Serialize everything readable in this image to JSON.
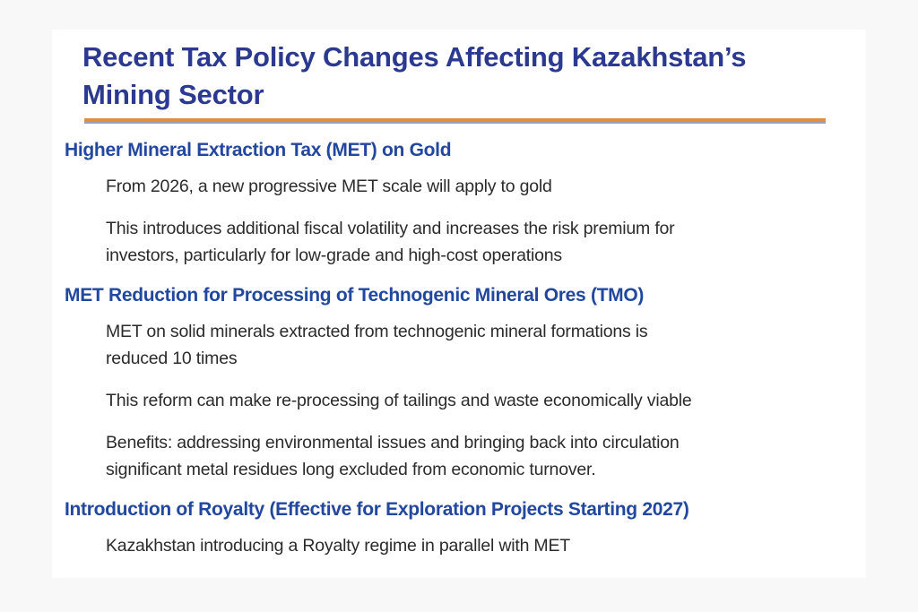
{
  "slide": {
    "title": "Recent Tax Policy Changes Affecting Kazakhstan’s\nMining Sector",
    "sections": [
      {
        "heading": "Higher Mineral Extraction Tax (MET) on Gold",
        "paragraphs": [
          "From 2026, a new progressive MET scale will apply to gold",
          "This introduces additional fiscal volatility and increases the risk premium for\ninvestors, particularly for low-grade and high-cost operations"
        ]
      },
      {
        "heading": "MET Reduction for Processing of Technogenic Mineral Ores (TMO)",
        "paragraphs": [
          "MET on solid minerals extracted from technogenic mineral formations is\nreduced 10 times",
          "This reform can make re-processing of tailings and waste economically viable",
          "Benefits: addressing environmental issues and bringing back into circulation\nsignificant metal residues long excluded from economic turnover."
        ]
      },
      {
        "heading": "Introduction of Royalty (Effective for Exploration Projects Starting 2027)",
        "paragraphs": [
          "Kazakhstan introducing a Royalty regime in parallel with MET"
        ]
      }
    ],
    "colors": {
      "title": "#2B3990",
      "heading": "#21479F",
      "body": "#2B2B2B",
      "accent_rule": "#E28F43",
      "rule_shadow": "#9BA3B7",
      "slide_bg": "#FFFFFF",
      "canvas_bg": "#F8F8F8"
    }
  }
}
